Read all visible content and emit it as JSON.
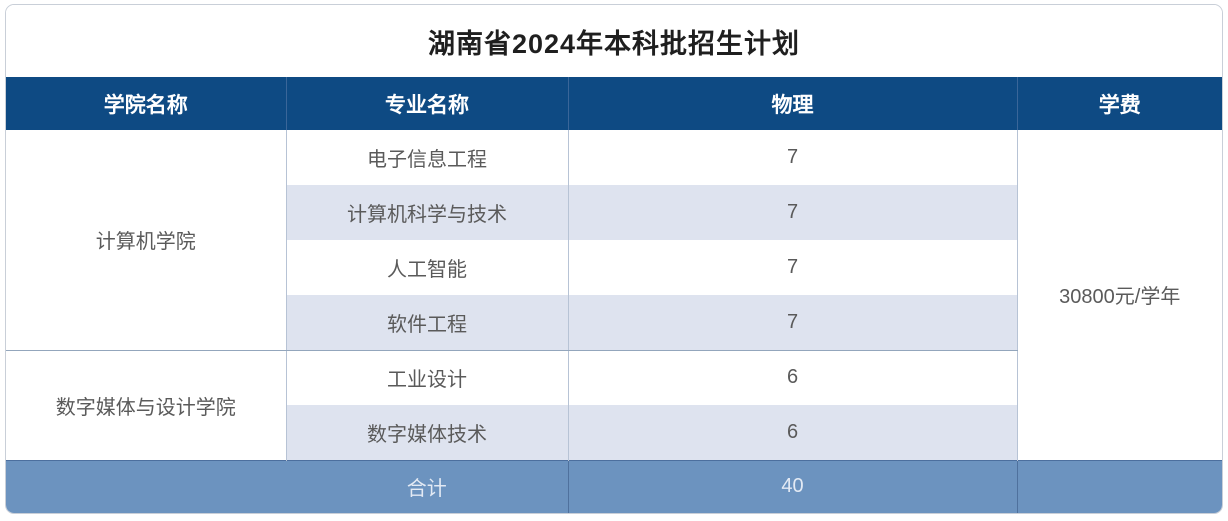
{
  "title": "湖南省2024年本科批招生计划",
  "colors": {
    "header_bg": "#0e4a83",
    "footer_bg": "#6c93bf",
    "stripe_bg": "#dee3ef",
    "body_text": "#5a5a5a",
    "header_text": "#ffffff"
  },
  "table": {
    "columns": {
      "college": "学院名称",
      "major": "专业名称",
      "physics": "物理",
      "tuition": "学费"
    },
    "groups": [
      {
        "college": "计算机学院",
        "majors": [
          {
            "name": "电子信息工程",
            "physics": "7"
          },
          {
            "name": "计算机科学与技术",
            "physics": "7"
          },
          {
            "name": "人工智能",
            "physics": "7"
          },
          {
            "name": "软件工程",
            "physics": "7"
          }
        ]
      },
      {
        "college": "数字媒体与设计学院",
        "majors": [
          {
            "name": "工业设计",
            "physics": "6"
          },
          {
            "name": "数字媒体技术",
            "physics": "6"
          }
        ]
      }
    ],
    "tuition": "30800元/学年",
    "footer": {
      "label": "合计",
      "total": "40"
    }
  }
}
